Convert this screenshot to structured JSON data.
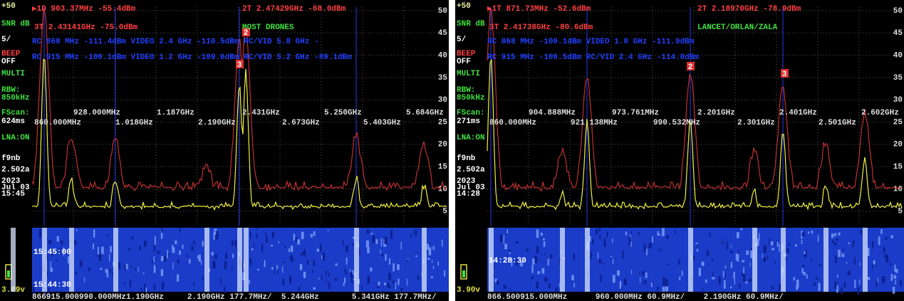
{
  "panels": [
    {
      "sidebar": [
        "+50",
        "SNR dB",
        "5/",
        "BEEP",
        "OFF",
        "MULTI",
        "RBW:",
        "850kHz",
        "FScan:",
        "624ms",
        "LNA:ON",
        "f9nb",
        "2.502a",
        "2023",
        "Jul 03",
        "15:45",
        "3.89v"
      ],
      "scale": [
        50,
        45,
        40,
        35,
        30,
        25,
        20,
        15,
        10,
        5
      ],
      "markers": [
        "▶1D  903.37MHz -55.4dBm",
        "2T  2.47429GHz -68.0dBm",
        "3T  2.43141GHz -75.0dBm"
      ],
      "mode": "MOST DRONES",
      "blue_rows": [
        "RC 868 MHz -111.4dBm  VIDEO 2.4 GHz -110.5dBm  RC/VID 5.8 GHz -",
        "RC 915 MHz -100.1dBm  VIDEO 1.2 GHz -109.6dBm  RC/VID 5.2 GHz -89.1dBm"
      ],
      "freq_row1": [
        "928.000MHz",
        "1.187GHz",
        "2.431GHz",
        "5.250GHz",
        "5.684GHz"
      ],
      "freq_row2": [
        "860.000MHz",
        "1.018GHz",
        "2.190GHz",
        "2.673GHz",
        "5.403GHz"
      ],
      "marker_tags": [
        "2",
        "3"
      ],
      "waterfall_times": [
        "15:45:00",
        "15:44:30"
      ],
      "bottom_row": "866915.000990.000MHz1.190GHz     2.190GHz 177.7MHz/  5.244GHz       5.341GHz 177.7MHz/"
    },
    {
      "sidebar": [
        "+50",
        "SNR dB",
        "5/",
        "BEEP",
        "OFF",
        "MULTI",
        "RBW:",
        "850kHz",
        "FScan:",
        "271ms",
        "LNA:ON",
        "f9nb",
        "2.502a",
        "2023",
        "Jul 03",
        "14:28",
        "3.90v"
      ],
      "scale": [
        50,
        45,
        40,
        35,
        30,
        25,
        20,
        15,
        10,
        5
      ],
      "markers": [
        "▶1T  871.73MHz -52.6dBm",
        "2T  2.18970GHz -78.9dBm",
        "3T  2.41738GHz -80.6dBm"
      ],
      "mode": "LANCET/ORLAN/ZALA",
      "blue_rows": [
        "RC 868 MHz -100.1dBm  VIDEO 1.0 GHz -111.9dBm",
        "RC 915 MHz -106.5dBm  RC/VID 2.4 GHz -114.0dBm"
      ],
      "freq_row1": [
        "904.888MHz",
        "973.761MHz",
        "2.201GHz",
        "2.401GHz",
        "2.602GHz"
      ],
      "freq_row2": [
        "860.000MHz",
        "921.138MHz",
        "990.532MHz",
        "2.301GHz",
        "2.501GHz"
      ],
      "marker_tags": [
        "2",
        "3"
      ],
      "waterfall_times": [
        "14:28:30"
      ],
      "bottom_row": "866.500915.000MHz      960.000MHz 60.9MHz/    2.190GHz 60.9MHz/"
    }
  ]
}
